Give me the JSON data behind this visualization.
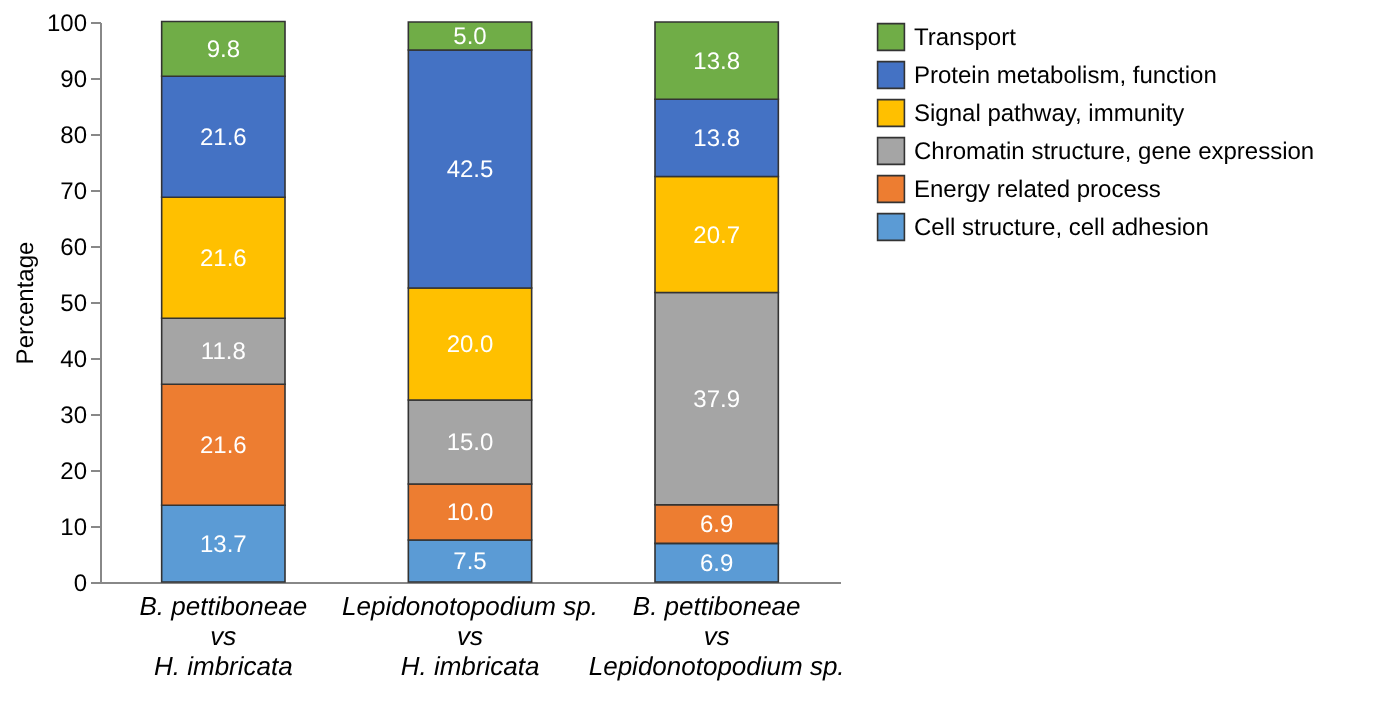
{
  "chart_data": {
    "type": "bar",
    "stacked": true,
    "ylabel": "Percentage",
    "categories": [
      "B. pettiboneae\nvs\nH. imbricata",
      "Lepidonotopodium sp.\nvs\nH. imbricata",
      "B. pettiboneae\nvs\nLepidonotopodium sp."
    ],
    "series": [
      {
        "name": "Cell structure, cell adhesion",
        "color": "#5b9bd5",
        "values": [
          13.7,
          7.5,
          6.9
        ],
        "value_labels": [
          "13.7",
          "7.5",
          "6.9"
        ]
      },
      {
        "name": "Energy related process",
        "color": "#ed7d31",
        "values": [
          21.6,
          10.0,
          6.9
        ],
        "value_labels": [
          "21.6",
          "10.0",
          "6.9"
        ]
      },
      {
        "name": "Chromatin structure, gene expression",
        "color": "#a5a5a5",
        "values": [
          11.8,
          15.0,
          37.9
        ],
        "value_labels": [
          "11.8",
          "15.0",
          "37.9"
        ]
      },
      {
        "name": "Signal pathway, immunity",
        "color": "#ffc000",
        "values": [
          21.6,
          20.0,
          20.7
        ],
        "value_labels": [
          "21.6",
          "20.0",
          "20.7"
        ]
      },
      {
        "name": "Protein metabolism, function",
        "color": "#4472c4",
        "values": [
          21.6,
          42.5,
          13.8
        ],
        "value_labels": [
          "21.6",
          "42.5",
          "13.8"
        ]
      },
      {
        "name": "Transport",
        "color": "#70ad47",
        "values": [
          9.8,
          5.0,
          13.8
        ],
        "value_labels": [
          "9.8",
          "5.0",
          "13.8"
        ]
      }
    ],
    "ylim": [
      0,
      100
    ],
    "yticks": [
      0,
      10,
      20,
      30,
      40,
      50,
      60,
      70,
      80,
      90,
      100
    ],
    "grid": false,
    "legend": "top right"
  }
}
